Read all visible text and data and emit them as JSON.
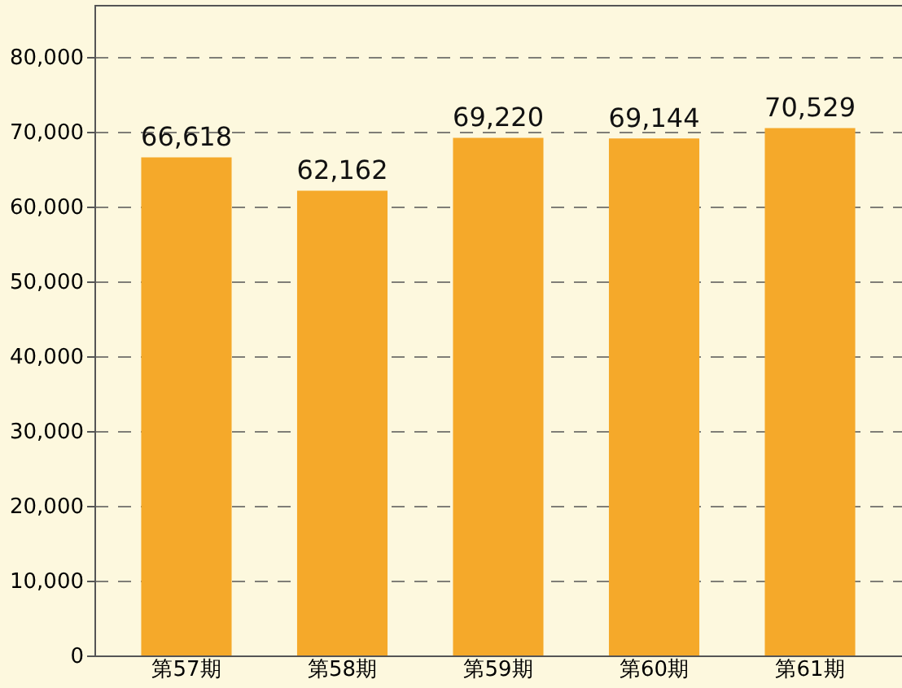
{
  "chart_data": {
    "type": "bar",
    "categories": [
      "第57期",
      "第58期",
      "第59期",
      "第60期",
      "第61期"
    ],
    "values": [
      66618,
      62162,
      69220,
      69144,
      70529
    ],
    "value_labels": [
      "66,618",
      "62,162",
      "69,220",
      "69,144",
      "70,529"
    ],
    "color": "#f5a92a",
    "ylim": [
      0,
      87000
    ],
    "yticks": [
      0,
      {
        "value": 10000,
        "label": "10,000"
      },
      {
        "value": 20000,
        "label": "20,000"
      },
      {
        "value": 30000,
        "label": "30,000"
      },
      {
        "value": 40000,
        "label": "40,000"
      },
      {
        "value": 50000,
        "label": "50,000"
      },
      {
        "value": 60000,
        "label": "60,000"
      },
      {
        "value": 70000,
        "label": "70,000"
      },
      {
        "value": 80000,
        "label": "80,000"
      }
    ],
    "grid": "y"
  }
}
